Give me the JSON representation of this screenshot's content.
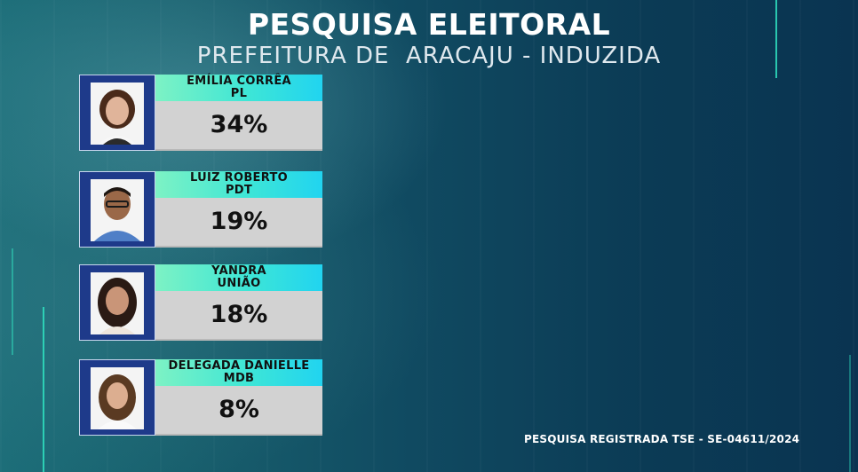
{
  "header": {
    "title": "PESQUISA ELEITORAL",
    "subtitle": "PREFEITURA DE  ARACAJU - INDUZIDA"
  },
  "chart_data": {
    "type": "table",
    "title": "PESQUISA ELEITORAL",
    "subtitle": "PREFEITURA DE  ARACAJU - INDUZIDA",
    "categories": [
      "EMÍLIA CORRÊA",
      "LUIZ ROBERTO",
      "YANDRA",
      "DELEGADA DANIELLE"
    ],
    "values": [
      34,
      19,
      18,
      8
    ],
    "unit": "%",
    "rows": [
      {
        "name": "EMÍLIA CORRÊA",
        "party": "PL",
        "value": 34,
        "label": "34%"
      },
      {
        "name": "LUIZ ROBERTO",
        "party": "PDT",
        "value": 19,
        "label": "19%"
      },
      {
        "name": "YANDRA",
        "party": "UNIÃO",
        "value": 18,
        "label": "18%"
      },
      {
        "name": "DELEGADA DANIELLE",
        "party": "MDB",
        "value": 8,
        "label": "8%"
      }
    ]
  },
  "footer": {
    "registration": "PESQUISA REGISTRADA TSE - SE-04611/2024"
  },
  "colors": {
    "accent": "#2fe0c0",
    "name_bar_start": "#7df2c4",
    "name_bar_end": "#21d4f0",
    "value_box": "#d2d2d2",
    "photo_frame": "#1e3a8a"
  }
}
